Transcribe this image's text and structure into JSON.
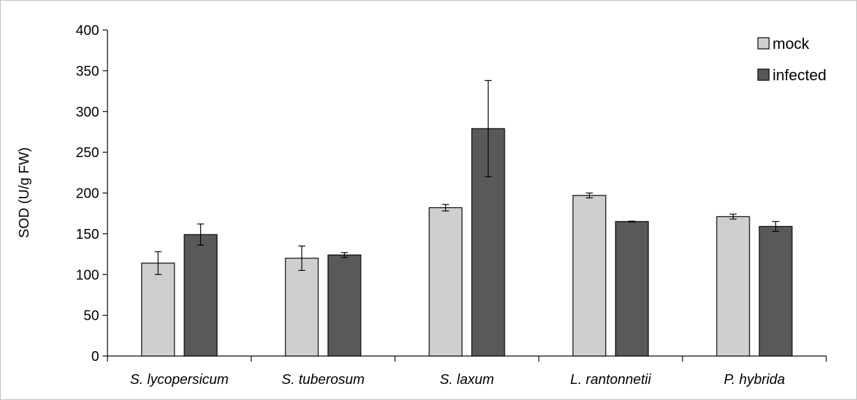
{
  "chart_data": {
    "type": "bar",
    "title": "",
    "xlabel": "",
    "ylabel": "SOD (U/g FW)",
    "ylim": [
      0,
      400
    ],
    "yticks": [
      0,
      50,
      100,
      150,
      200,
      250,
      300,
      350,
      400
    ],
    "categories": [
      "S. lycopersicum",
      "S. tuberosum",
      "S. laxum",
      "L. rantonnetii",
      "P. hybrida"
    ],
    "series": [
      {
        "name": "mock",
        "color": "#d0cece",
        "values": [
          114,
          120,
          182,
          197,
          171
        ],
        "errors": [
          14,
          15,
          4,
          3,
          3
        ]
      },
      {
        "name": "infected",
        "color": "#595959",
        "values": [
          149,
          124,
          279,
          165,
          159
        ],
        "errors": [
          13,
          3,
          59,
          0.5,
          6
        ]
      }
    ],
    "grid": false,
    "legend": "top-right"
  }
}
